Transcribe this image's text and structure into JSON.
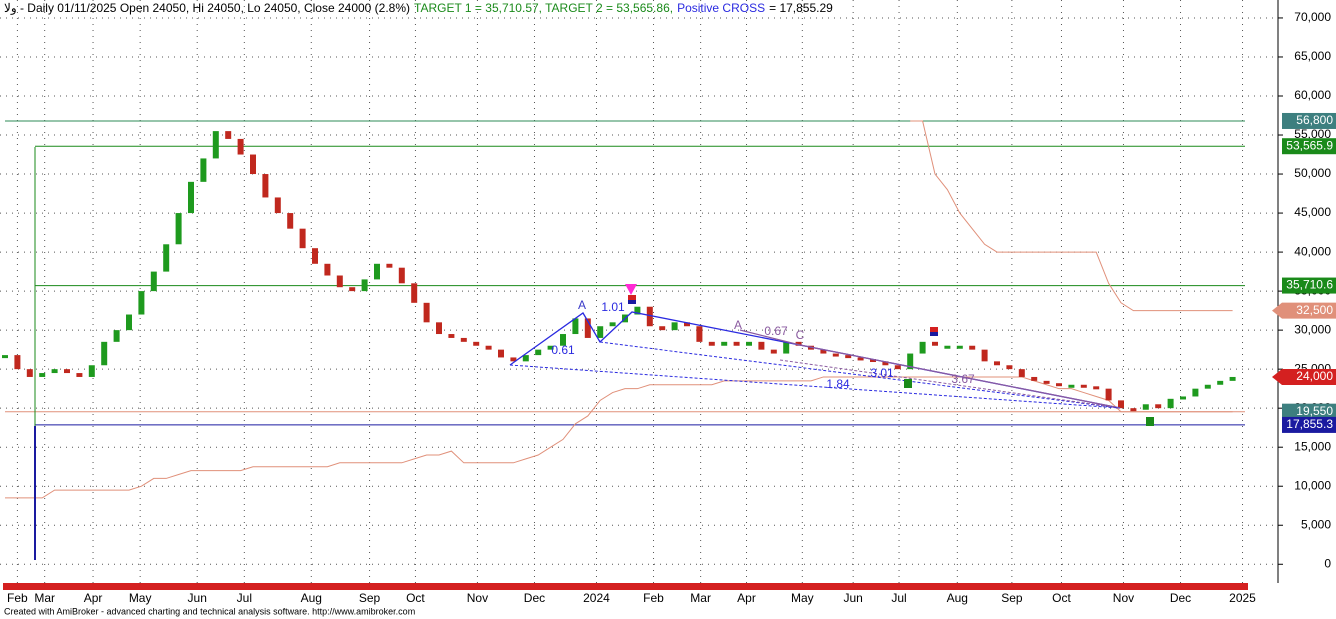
{
  "chart_data": {
    "type": "candlestick",
    "title": [
      {
        "text": "ولا - Daily 01/11/2025 Open 24050, Hi 24050, Lo 24050, Close 24000 (2.8%)",
        "color": "#000000"
      },
      {
        "text": "TARGET 1 = 35,710.57, TARGET 2 = 53,565.86,",
        "color": "#1a8a1a"
      },
      {
        "text": "Positive CROSS",
        "color": "#2a2ae0"
      },
      {
        "text": "= 17,855.29",
        "color": "#000000"
      }
    ],
    "footer": "Created with AmiBroker - advanced charting and technical analysis software. http://www.amibroker.com",
    "xlim": [
      0,
      100
    ],
    "xticks": [
      {
        "value": 1,
        "label": "Feb"
      },
      {
        "value": 3.2,
        "label": "Mar"
      },
      {
        "value": 7.1,
        "label": "Apr"
      },
      {
        "value": 10.9,
        "label": "May"
      },
      {
        "value": 15.5,
        "label": "Jun"
      },
      {
        "value": 19.3,
        "label": "Jul"
      },
      {
        "value": 24.7,
        "label": "Aug"
      },
      {
        "value": 29.4,
        "label": "Sep"
      },
      {
        "value": 33.1,
        "label": "Oct"
      },
      {
        "value": 38.1,
        "label": "Nov"
      },
      {
        "value": 42.7,
        "label": "Dec"
      },
      {
        "value": 47.7,
        "label": "2024"
      },
      {
        "value": 52.3,
        "label": "Feb"
      },
      {
        "value": 56.1,
        "label": "Mar"
      },
      {
        "value": 59.8,
        "label": "Apr"
      },
      {
        "value": 64.3,
        "label": "May"
      },
      {
        "value": 68.4,
        "label": "Jun"
      },
      {
        "value": 72.1,
        "label": "Jul"
      },
      {
        "value": 76.8,
        "label": "Aug"
      },
      {
        "value": 81.2,
        "label": "Sep"
      },
      {
        "value": 85.2,
        "label": "Oct"
      },
      {
        "value": 90.2,
        "label": "Nov"
      },
      {
        "value": 94.8,
        "label": "Dec"
      },
      {
        "value": 99.8,
        "label": "2025"
      }
    ],
    "ylim": [
      -2400,
      72300
    ],
    "yticks": [
      0,
      {
        "value": 5000,
        "label": "5,000"
      },
      {
        "value": 10000,
        "label": "10,000"
      },
      {
        "value": 15000,
        "label": "15,000"
      },
      {
        "value": 20000,
        "label": "20,000"
      },
      {
        "value": 25000,
        "label": "25,000"
      },
      {
        "value": 30000,
        "label": "30,000"
      },
      {
        "value": 35000,
        "label": "35,000"
      },
      {
        "value": 40000,
        "label": "40,000"
      },
      {
        "value": 45000,
        "label": "45,000"
      },
      {
        "value": 50000,
        "label": "50,000"
      },
      {
        "value": 55000,
        "label": "55,000"
      },
      {
        "value": 60000,
        "label": "60,000"
      },
      {
        "value": 65000,
        "label": "65,000"
      },
      {
        "value": 70000,
        "label": "70,000"
      }
    ],
    "grid": true,
    "up_color": "#1e9a1e",
    "down_color": "#c0281e",
    "values": [
      26800,
      25000,
      24000,
      24500,
      25000,
      24500,
      24000,
      25500,
      28500,
      30000,
      32000,
      35000,
      37500,
      41000,
      45000,
      49000,
      52000,
      55500,
      54500,
      52500,
      50000,
      47000,
      45000,
      43000,
      40500,
      38500,
      37000,
      35500,
      35000,
      36500,
      38500,
      38000,
      36000,
      33500,
      31000,
      29500,
      29000,
      28500,
      28000,
      27500,
      26500,
      26000,
      26800,
      27500,
      28000,
      29500,
      31500,
      29000,
      30500,
      31000,
      32000,
      33000,
      30500,
      30000,
      31000,
      30500,
      28500,
      28000,
      28500,
      28000,
      28500,
      27500,
      27000,
      28500,
      28000,
      27500,
      27000,
      26800,
      26500,
      26300,
      26000,
      25500,
      25000,
      27000,
      28500,
      28000,
      28000,
      28000,
      27500,
      26000,
      25500,
      25000,
      24000,
      23500,
      23200,
      23000,
      23000,
      22800,
      22500,
      21000,
      20000,
      19800,
      20500,
      20000,
      21200,
      21500,
      22500,
      23000,
      23500,
      24000
    ],
    "series": [
      {
        "color": "#e0907a",
        "values": [
          8500,
          8500,
          8500,
          8500,
          9500,
          9500,
          9500,
          9500,
          9500,
          9500,
          9500,
          10000,
          11000,
          11000,
          11500,
          12000,
          12000,
          12000,
          12000,
          12000,
          12500,
          12500,
          12500,
          12500,
          12500,
          12500,
          12500,
          13000,
          13000,
          13000,
          13000,
          13000,
          13000,
          13500,
          14000,
          14000,
          14500,
          13000,
          13000,
          13000,
          13000,
          13000,
          13500,
          14000,
          15000,
          16000,
          18000,
          19000,
          21000,
          22000,
          22500,
          22500,
          23000,
          23000,
          23000,
          23000,
          23000,
          23000,
          23500,
          23500,
          23500,
          23500,
          23500,
          23500,
          23500,
          23500,
          24000,
          24000,
          24000,
          24000,
          24000,
          24000,
          24000,
          24000,
          24000,
          24000,
          24000,
          24000,
          24000,
          24000,
          24000,
          24000,
          24000,
          23500,
          23000,
          22500,
          22500,
          22000,
          21500,
          21000,
          19550,
          19550,
          19550,
          19550,
          19550,
          19550,
          19550,
          19550,
          19550,
          19550
        ]
      },
      {
        "color": "#e0907a",
        "values": [
          null,
          null,
          null,
          null,
          null,
          null,
          null,
          null,
          null,
          null,
          null,
          null,
          null,
          null,
          null,
          null,
          null,
          null,
          null,
          null,
          null,
          null,
          null,
          null,
          null,
          null,
          null,
          null,
          null,
          null,
          null,
          null,
          null,
          null,
          null,
          null,
          null,
          null,
          null,
          null,
          null,
          null,
          null,
          null,
          null,
          null,
          null,
          null,
          null,
          null,
          null,
          null,
          null,
          null,
          null,
          null,
          null,
          null,
          null,
          null,
          null,
          null,
          null,
          null,
          null,
          null,
          null,
          null,
          null,
          null,
          null,
          null,
          null,
          56800,
          56800,
          50000,
          48000,
          45000,
          43000,
          41000,
          40000,
          40000,
          40000,
          40000,
          40000,
          40000,
          40000,
          40000,
          40000,
          36000,
          33500,
          32500,
          32500,
          32500,
          32500,
          32500,
          32500,
          32500,
          32500,
          32500
        ]
      }
    ],
    "levels": [
      {
        "value": 56800,
        "label": "56,800",
        "color": "#3d7f7f",
        "line": "#2e8b57"
      },
      {
        "value": 53565.9,
        "label": "53,565.9",
        "color": "#1a8a1a",
        "line": "#1a8a1a"
      },
      {
        "value": 35710.6,
        "label": "35,710.6",
        "color": "#1a8a1a",
        "line": "#1a8a1a"
      },
      {
        "value": 32500,
        "label": "32,500",
        "color": "#e0907a",
        "line": null
      },
      {
        "value": 24000,
        "label": "24,000",
        "color": "#d42020",
        "line": null
      },
      {
        "value": 19550,
        "label": "19,550",
        "color": "#e8e8e8",
        "line": "#e0907a"
      },
      {
        "value": 19550,
        "label": "19,550",
        "color": "#3d7f7f",
        "line": null
      },
      {
        "value": 17855.3,
        "label": "17,855.3",
        "color": "#1a1aa0",
        "line": "#1a1aa0"
      }
    ],
    "annotations": [
      {
        "text": "A",
        "color": "#3a3ac8"
      },
      {
        "text": "1.01",
        "color": "#2a2ae0"
      },
      {
        "text": "0.61",
        "color": "#2a2ae0"
      },
      {
        "text": "A",
        "color": "#8a5aa0"
      },
      {
        "text": "0.67",
        "color": "#8a5aa0"
      },
      {
        "text": "C",
        "color": "#8a5aa0"
      },
      {
        "text": "3.01",
        "color": "#2a2ae0"
      },
      {
        "text": "1.84",
        "color": "#2a2ae0"
      },
      {
        "text": "3.67",
        "color": "#8a5aa0"
      }
    ]
  }
}
